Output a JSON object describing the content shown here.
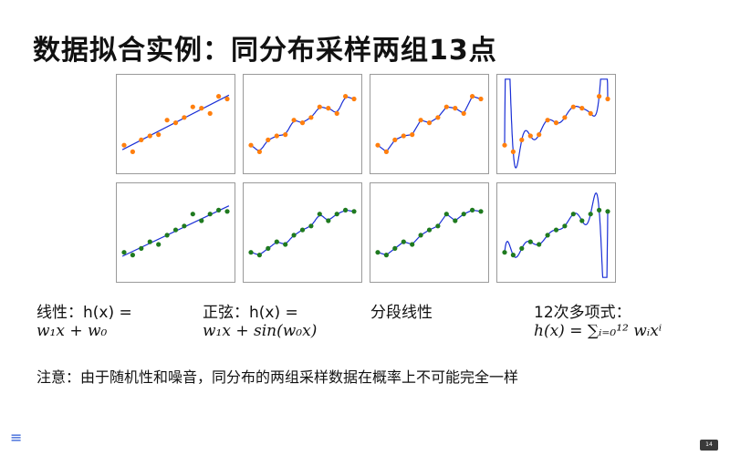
{
  "title": "数据拟合实例：同分布采样两组13点",
  "labels": {
    "linear": {
      "line1": "线性：h(x) =",
      "line2": "w₁x + w₀"
    },
    "sine": {
      "line1": "正弦：h(x) =",
      "line2": "w₁x + sin(w₀x)"
    },
    "piecewise": {
      "line1": "分段线性"
    },
    "poly": {
      "line1": "12次多项式：",
      "line2": "h(x) = ∑ᵢ₌₀¹² wᵢxⁱ"
    }
  },
  "note": "注意：由于随机性和噪音，同分布的两组采样数据在概率上不可能完全一样",
  "page_number": "14",
  "icons": {
    "menu": "menu-icon"
  },
  "colors": {
    "sample_a": "#ff7f0e",
    "sample_b": "#1f7a1f",
    "fit_line": "#1a2fd6"
  },
  "chart_data": {
    "type": "scatter",
    "title": "",
    "xlabel": "",
    "ylabel": "",
    "grid": false,
    "rows": [
      "sample_a",
      "sample_b"
    ],
    "columns": [
      "linear",
      "sine",
      "piecewise",
      "poly12"
    ],
    "x": [
      0,
      1,
      2,
      3,
      4,
      5,
      6,
      7,
      8,
      9,
      10,
      11,
      12
    ],
    "series": [
      {
        "values": [
          0.5,
          0.0,
          0.9,
          1.2,
          1.3,
          2.4,
          2.2,
          2.6,
          3.4,
          3.3,
          2.9,
          4.2,
          4.0
        ]
      },
      {
        "values": [
          0.6,
          0.4,
          0.9,
          1.4,
          1.2,
          1.9,
          2.3,
          2.6,
          3.5,
          3.0,
          3.5,
          3.8,
          3.7
        ]
      }
    ],
    "ylim": [
      -0.8,
      5.0
    ]
  }
}
